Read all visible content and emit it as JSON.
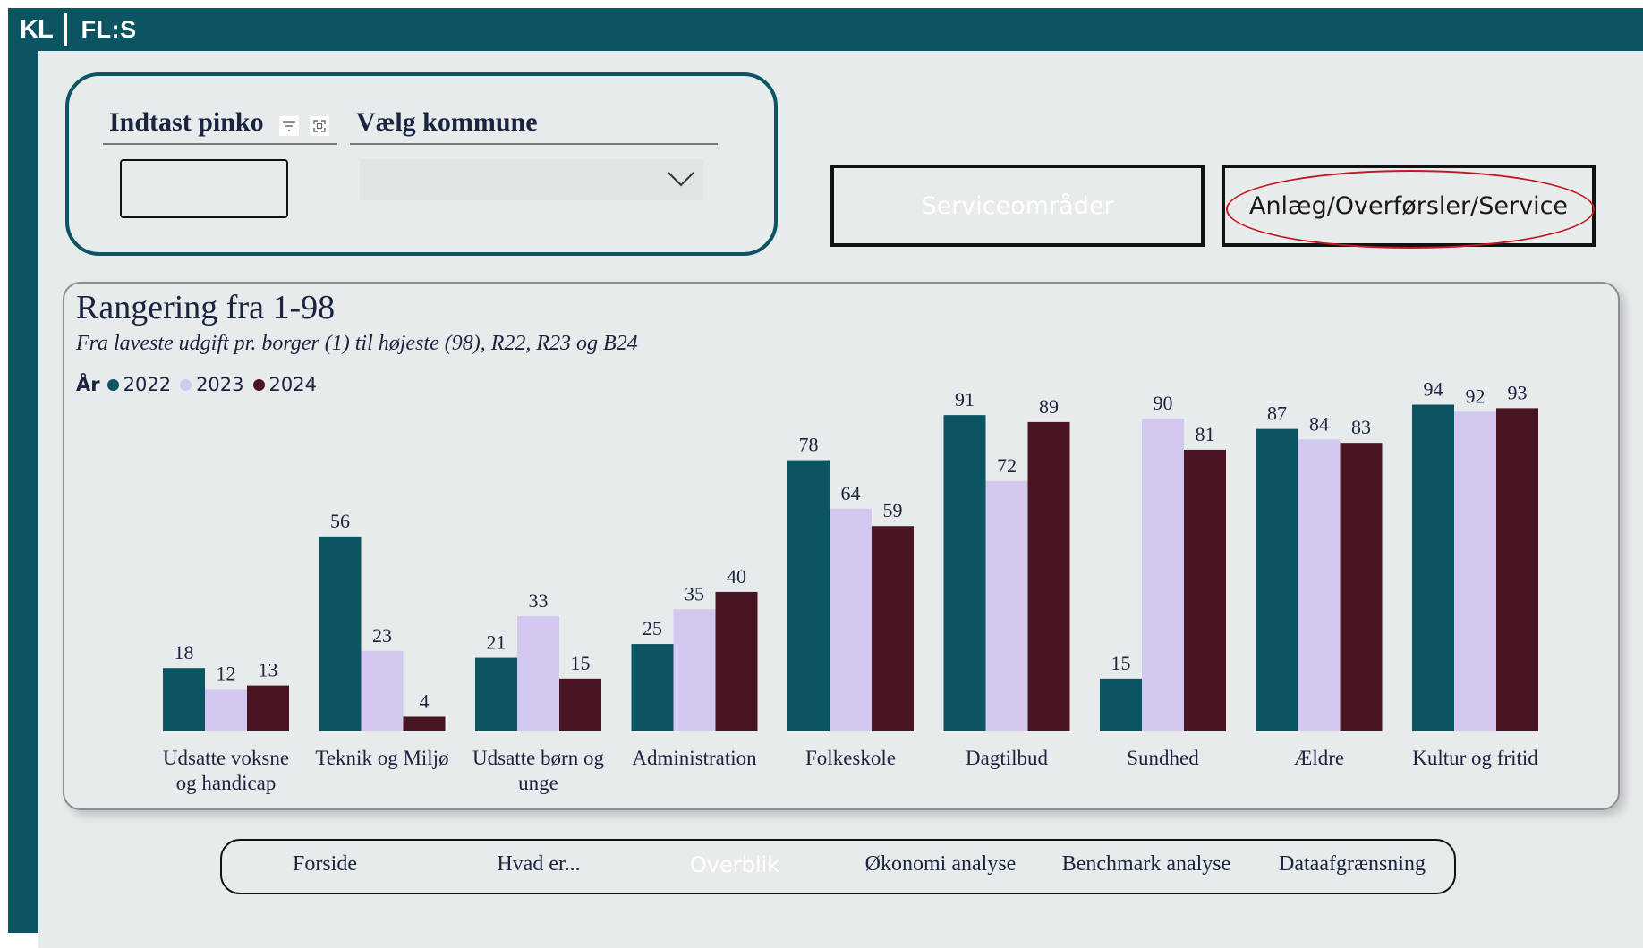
{
  "header": {
    "logo_left": "KL",
    "logo_right": "FL:S"
  },
  "filters": {
    "pinko_title": "Indtast pinko",
    "pinko_value": "",
    "kommune_title": "Vælg kommune",
    "kommune_value": ""
  },
  "buttons": {
    "service": "Serviceområder",
    "anlaeg": "Anlæg/Overførsler/Service"
  },
  "chart_data": {
    "type": "bar",
    "title": "Rangering fra 1-98",
    "subtitle": "Fra laveste udgift pr. borger (1) til højeste (98), R22, R23 og B24",
    "legend_title": "År",
    "legend_placement": "top-left",
    "categories": [
      [
        "Udsatte voksne",
        "og handicap"
      ],
      [
        "Teknik og Miljø"
      ],
      [
        "Udsatte børn og",
        "unge"
      ],
      [
        "Administration"
      ],
      [
        "Folkeskole"
      ],
      [
        "Dagtilbud"
      ],
      [
        "Sundhed"
      ],
      [
        "Ældre"
      ],
      [
        "Kultur og fritid"
      ]
    ],
    "series": [
      {
        "name": "2022",
        "color": "#0b5563",
        "values": [
          18,
          56,
          21,
          25,
          78,
          91,
          15,
          87,
          94
        ]
      },
      {
        "name": "2023",
        "color": "#d3c8ef",
        "values": [
          12,
          23,
          33,
          35,
          64,
          72,
          90,
          84,
          92
        ]
      },
      {
        "name": "2024",
        "color": "#4a1522",
        "values": [
          13,
          4,
          15,
          40,
          59,
          89,
          81,
          83,
          93
        ]
      }
    ],
    "ylim": [
      0,
      98
    ],
    "grid": false
  },
  "nav": {
    "items": [
      "Forside",
      "Hvad er...",
      "Overblik",
      "Økonomi analyse",
      "Benchmark analyse",
      "Dataafgrænsning"
    ],
    "active": "Overblik"
  }
}
